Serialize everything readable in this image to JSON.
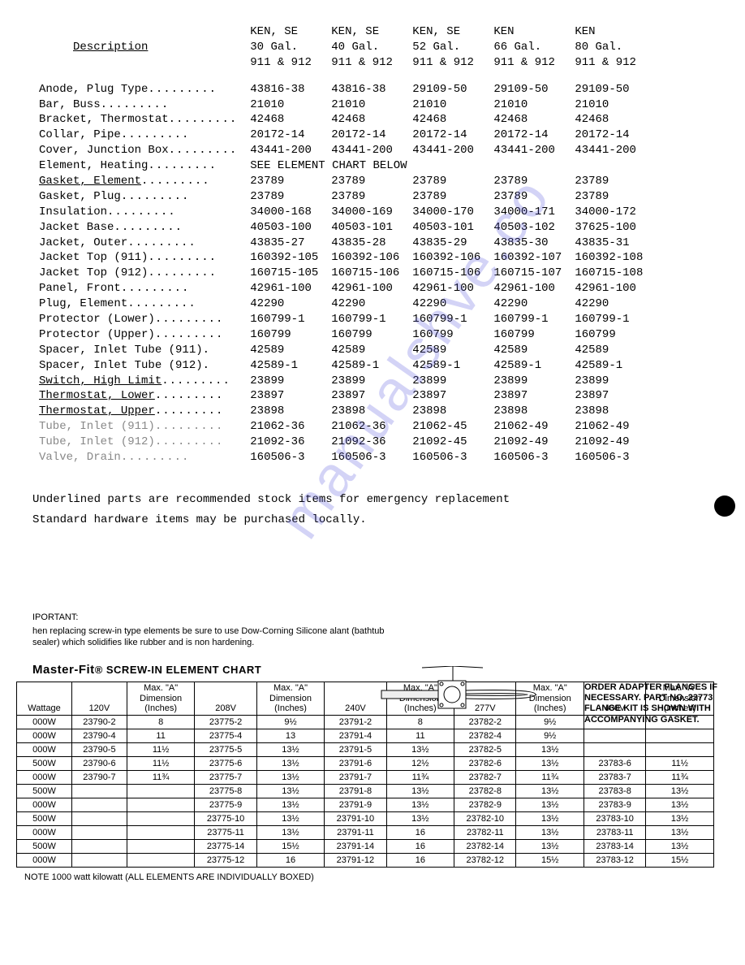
{
  "watermark_text": "manualshve.co",
  "parts_header": {
    "desc": "Description",
    "cols": [
      [
        "KEN, SE",
        "30 Gal.",
        "911 & 912"
      ],
      [
        "KEN, SE",
        "40 Gal.",
        "911 & 912"
      ],
      [
        "KEN, SE",
        "52 Gal.",
        "911 & 912"
      ],
      [
        "KEN",
        "66 Gal.",
        "911 & 912"
      ],
      [
        "KEN",
        "80 Gal.",
        "911 & 912"
      ]
    ]
  },
  "parts_rows": [
    {
      "desc": "Anode, Plug Type",
      "u": false,
      "f": false,
      "v": [
        "43816-38",
        "43816-38",
        "29109-50",
        "29109-50",
        "29109-50"
      ]
    },
    {
      "desc": "Bar, Buss",
      "u": false,
      "f": false,
      "v": [
        "21010",
        "21010",
        "21010",
        "21010",
        "21010"
      ]
    },
    {
      "desc": "Bracket, Thermostat",
      "u": false,
      "f": false,
      "v": [
        "42468",
        "42468",
        "42468",
        "42468",
        "42468"
      ]
    },
    {
      "desc": "Collar, Pipe",
      "u": false,
      "f": false,
      "v": [
        "20172-14",
        "20172-14",
        "20172-14",
        "20172-14",
        "20172-14"
      ]
    },
    {
      "desc": "Cover, Junction Box",
      "u": false,
      "f": false,
      "v": [
        "43441-200",
        "43441-200",
        "43441-200",
        "43441-200",
        "43441-200"
      ]
    },
    {
      "desc": "Element, Heating",
      "u": false,
      "f": false,
      "span": "SEE ELEMENT CHART BELOW"
    },
    {
      "desc": "Gasket, Element",
      "u": true,
      "f": false,
      "v": [
        "23789",
        "23789",
        "23789",
        "23789",
        "23789"
      ]
    },
    {
      "desc": "Gasket, Plug",
      "u": false,
      "f": false,
      "v": [
        "23789",
        "23789",
        "23789",
        "23789",
        "23789"
      ]
    },
    {
      "desc": "Insulation",
      "u": false,
      "f": false,
      "v": [
        "34000-168",
        "34000-169",
        "34000-170",
        "34000-171",
        "34000-172"
      ]
    },
    {
      "desc": "Jacket Base",
      "u": false,
      "f": false,
      "v": [
        "40503-100",
        "40503-101",
        "40503-101",
        "40503-102",
        "37625-100"
      ]
    },
    {
      "desc": "Jacket, Outer",
      "u": false,
      "f": false,
      "v": [
        "43835-27",
        "43835-28",
        "43835-29",
        "43835-30",
        "43835-31"
      ]
    },
    {
      "desc": "Jacket Top (911)",
      "u": false,
      "f": false,
      "v": [
        "160392-105",
        "160392-106",
        "160392-106",
        "160392-107",
        "160392-108"
      ]
    },
    {
      "desc": "Jacket Top (912)",
      "u": false,
      "f": false,
      "v": [
        "160715-105",
        "160715-106",
        "160715-106",
        "160715-107",
        "160715-108"
      ]
    },
    {
      "desc": "Panel, Front",
      "u": false,
      "f": false,
      "v": [
        "42961-100",
        "42961-100",
        "42961-100",
        "42961-100",
        "42961-100"
      ]
    },
    {
      "desc": "Plug, Element",
      "u": false,
      "f": false,
      "v": [
        "42290",
        "42290",
        "42290",
        "42290",
        "42290"
      ]
    },
    {
      "desc": "Protector (Lower)",
      "u": false,
      "f": false,
      "v": [
        "160799-1",
        "160799-1",
        "160799-1",
        "160799-1",
        "160799-1"
      ]
    },
    {
      "desc": "Protector (Upper)",
      "u": false,
      "f": false,
      "v": [
        "160799",
        "160799",
        "160799",
        "160799",
        "160799"
      ]
    },
    {
      "desc": "Spacer, Inlet Tube (911)",
      "u": false,
      "f": false,
      "v": [
        "42589",
        "42589",
        "42589",
        "42589",
        "42589"
      ],
      "nodots": true
    },
    {
      "desc": "Spacer, Inlet Tube (912)",
      "u": false,
      "f": false,
      "v": [
        "42589-1",
        "42589-1",
        "42589-1",
        "42589-1",
        "42589-1"
      ],
      "nodots": true
    },
    {
      "desc": "Switch, High Limit",
      "u": true,
      "f": false,
      "v": [
        "23899",
        "23899",
        "23899",
        "23899",
        "23899"
      ]
    },
    {
      "desc": "Thermostat, Lower",
      "u": true,
      "f": false,
      "v": [
        "23897",
        "23897",
        "23897",
        "23897",
        "23897"
      ]
    },
    {
      "desc": "Thermostat, Upper",
      "u": true,
      "f": false,
      "v": [
        "23898",
        "23898",
        "23898",
        "23898",
        "23898"
      ]
    },
    {
      "desc": "Tube, Inlet (911)",
      "u": false,
      "f": true,
      "v": [
        "21062-36",
        "21062-36",
        "21062-45",
        "21062-49",
        "21062-49"
      ]
    },
    {
      "desc": "Tube, Inlet (912)",
      "u": false,
      "f": true,
      "v": [
        "21092-36",
        "21092-36",
        "21092-45",
        "21092-49",
        "21092-49"
      ]
    },
    {
      "desc": "Valve, Drain",
      "u": false,
      "f": true,
      "v": [
        "160506-3",
        "160506-3",
        "160506-3",
        "160506-3",
        "160506-3"
      ]
    }
  ],
  "notes": {
    "line1": "Underlined parts are recommended stock items for emergency replacement",
    "line2": "Standard hardware items may be purchased locally."
  },
  "important": {
    "title": "IPORTANT:",
    "body": "hen replacing screw-in type elements be sure to use Dow-Corning Silicone alant (bathtub sealer) which solidifies like rubber and is non hardening."
  },
  "flange_note": "ORDER ADAPTER FLANGES IF NECESSARY. PART NO. 23773 FLANGE KIT IS SHOWN WITH ACCOMPANYING GASKET.",
  "chart_title_brand": "Master-Fit",
  "chart_title_rest": "® SCREW-IN ELEMENT CHART",
  "element_header": {
    "watt": "Wattage",
    "volts": [
      "120V",
      "208V",
      "240V",
      "277V",
      "480V"
    ],
    "max": "Max. \"A\" Dimension (Inches)"
  },
  "element_rows": [
    {
      "w": "000W",
      "c": [
        [
          "23790-2",
          "8"
        ],
        [
          "23775-2",
          "9½"
        ],
        [
          "23791-2",
          "8"
        ],
        [
          "23782-2",
          "9½"
        ],
        [
          "",
          ""
        ]
      ]
    },
    {
      "w": "000W",
      "c": [
        [
          "23790-4",
          "11"
        ],
        [
          "23775-4",
          "13"
        ],
        [
          "23791-4",
          "11"
        ],
        [
          "23782-4",
          "9½"
        ],
        [
          "",
          ""
        ]
      ]
    },
    {
      "w": "000W",
      "c": [
        [
          "23790-5",
          "11½"
        ],
        [
          "23775-5",
          "13½"
        ],
        [
          "23791-5",
          "13½"
        ],
        [
          "23782-5",
          "13½"
        ],
        [
          "",
          ""
        ]
      ]
    },
    {
      "w": "500W",
      "c": [
        [
          "23790-6",
          "11½"
        ],
        [
          "23775-6",
          "13½"
        ],
        [
          "23791-6",
          "12½"
        ],
        [
          "23782-6",
          "13½"
        ],
        [
          "23783-6",
          "11½"
        ]
      ]
    },
    {
      "w": "000W",
      "c": [
        [
          "23790-7",
          "11¾"
        ],
        [
          "23775-7",
          "13½"
        ],
        [
          "23791-7",
          "11¾"
        ],
        [
          "23782-7",
          "11¾"
        ],
        [
          "23783-7",
          "11¾"
        ]
      ]
    },
    {
      "w": "500W",
      "c": [
        [
          "",
          ""
        ],
        [
          "23775-8",
          "13½"
        ],
        [
          "23791-8",
          "13½"
        ],
        [
          "23782-8",
          "13½"
        ],
        [
          "23783-8",
          "13½"
        ]
      ]
    },
    {
      "w": "000W",
      "c": [
        [
          "",
          ""
        ],
        [
          "23775-9",
          "13½"
        ],
        [
          "23791-9",
          "13½"
        ],
        [
          "23782-9",
          "13½"
        ],
        [
          "23783-9",
          "13½"
        ]
      ]
    },
    {
      "w": "500W",
      "c": [
        [
          "",
          ""
        ],
        [
          "23775-10",
          "13½"
        ],
        [
          "23791-10",
          "13½"
        ],
        [
          "23782-10",
          "13½"
        ],
        [
          "23783-10",
          "13½"
        ]
      ]
    },
    {
      "w": "000W",
      "c": [
        [
          "",
          ""
        ],
        [
          "23775-11",
          "13½"
        ],
        [
          "23791-11",
          "16"
        ],
        [
          "23782-11",
          "13½"
        ],
        [
          "23783-11",
          "13½"
        ]
      ]
    },
    {
      "w": "500W",
      "c": [
        [
          "",
          ""
        ],
        [
          "23775-14",
          "15½"
        ],
        [
          "23791-14",
          "16"
        ],
        [
          "23782-14",
          "13½"
        ],
        [
          "23783-14",
          "13½"
        ]
      ]
    },
    {
      "w": "000W",
      "c": [
        [
          "",
          ""
        ],
        [
          "23775-12",
          "16"
        ],
        [
          "23791-12",
          "16"
        ],
        [
          "23782-12",
          "15½"
        ],
        [
          "23783-12",
          "15½"
        ]
      ]
    }
  ],
  "foot_note": "NOTE   1000 watt       kilowatt (ALL ELEMENTS ARE INDIVIDUALLY BOXED)"
}
